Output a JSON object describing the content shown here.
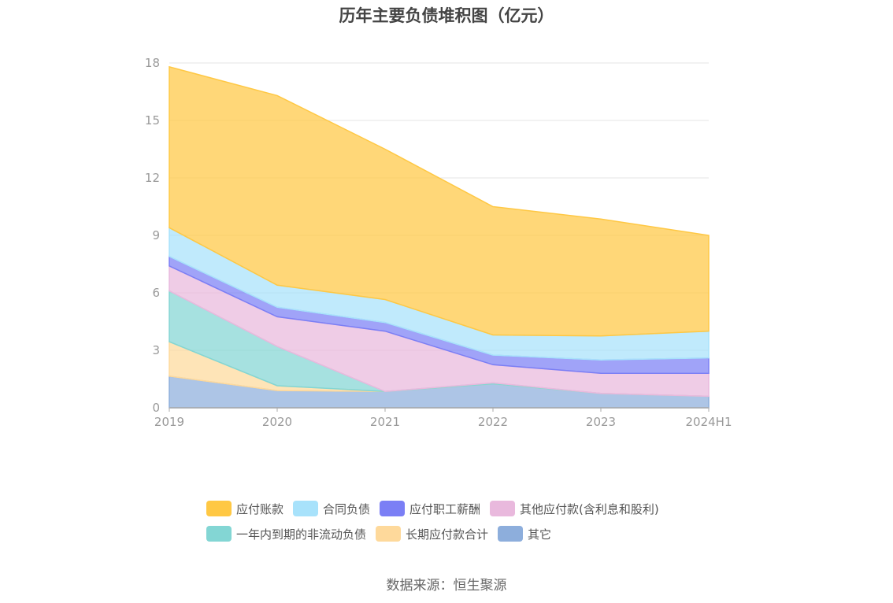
{
  "title": "历年主要负债堆积图（亿元）",
  "source": "数据来源：恒生聚源",
  "chart_data": {
    "type": "area",
    "stacked": true,
    "categories": [
      "2019",
      "2020",
      "2021",
      "2022",
      "2023",
      "2024H1"
    ],
    "ylim": [
      0,
      18
    ],
    "yticks": [
      0,
      3,
      6,
      9,
      12,
      15,
      18
    ],
    "grid": true,
    "legend_position": "bottom",
    "series": [
      {
        "name": "其它",
        "color": "#8daedc",
        "values": [
          1.65,
          0.9,
          0.85,
          1.25,
          0.75,
          0.6
        ]
      },
      {
        "name": "长期应付款合计",
        "color": "#fed99b",
        "values": [
          1.8,
          0.25,
          0.0,
          0.0,
          0.0,
          0.0
        ]
      },
      {
        "name": "一年内到期的非流动负债",
        "color": "#83d6d4",
        "values": [
          2.65,
          2.05,
          0.0,
          0.05,
          0.0,
          0.0
        ]
      },
      {
        "name": "其他应付款(含利息和股利)",
        "color": "#e9b9dd",
        "values": [
          1.3,
          1.55,
          3.15,
          0.95,
          1.05,
          1.2
        ]
      },
      {
        "name": "应付职工薪酬",
        "color": "#7b7ff5",
        "values": [
          0.5,
          0.5,
          0.45,
          0.5,
          0.7,
          0.8
        ]
      },
      {
        "name": "合同负债",
        "color": "#a8e2fb",
        "values": [
          1.5,
          1.15,
          1.2,
          1.05,
          1.25,
          1.4
        ]
      },
      {
        "name": "应付账款",
        "color": "#ffc844",
        "values": [
          8.4,
          9.9,
          7.85,
          6.7,
          6.1,
          5.0
        ]
      }
    ]
  }
}
